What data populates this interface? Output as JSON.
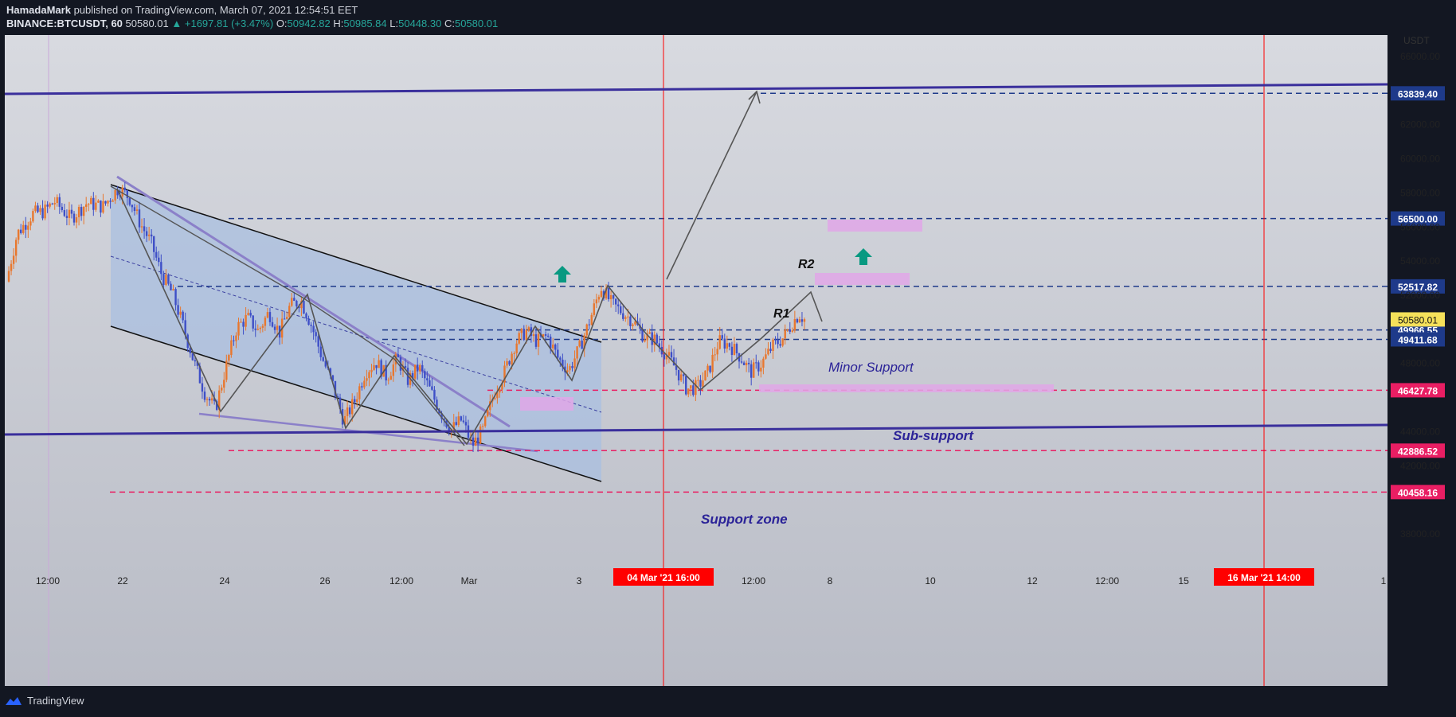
{
  "header": {
    "author": "HamadaMark",
    "published": "published on TradingView.com, March 07, 2021 12:54:51 EET",
    "symbol": "BINANCE:BTCUSDT, 60",
    "last": "50580.01",
    "change": "▲ +1697.81 (+3.47%)",
    "o_label": "O:",
    "o_val": "50942.82",
    "h_label": "H:",
    "h_val": "50985.84",
    "l_label": "L:",
    "l_val": "50448.30",
    "c_label": "C:",
    "c_val": "50580.01"
  },
  "footer": {
    "brand": "TradingView"
  },
  "colors": {
    "background": "#d6d8de",
    "channel_fill": "#a9bfe0",
    "trendline_blue": "#3a2f9c",
    "dashed_blue": "#1e3a8a",
    "dashed_red": "#e91e63",
    "vertical_red": "#ff0000",
    "pink_box": "#e1a7e8",
    "arrow_teal": "#089981",
    "candle_up": "#e8772e",
    "candle_down": "#3e4fc7"
  },
  "chart_data": {
    "type": "candlestick",
    "y_axis_unit": "USDT",
    "ylim": [
      36000,
      67500
    ],
    "y_ticks": [
      38000,
      40000,
      42000,
      44000,
      46000,
      48000,
      50000,
      52000,
      54000,
      56000,
      58000,
      60000,
      62000,
      64000,
      66000
    ],
    "x_ticks": [
      "12:00",
      "22",
      "24",
      "26",
      "12:00",
      "Mar",
      "3",
      "12:00",
      "8",
      "10",
      "12",
      "12:00",
      "15",
      "1"
    ],
    "x_markers": [
      {
        "label": "04 Mar '21   16:00"
      },
      {
        "label": "16 Mar '21   14:00"
      }
    ],
    "price_levels": [
      {
        "value": 63839.4,
        "label": "63839.40",
        "style": "dashed-blue"
      },
      {
        "value": 56500.0,
        "label": "56500.00",
        "style": "dashed-blue"
      },
      {
        "value": 52517.82,
        "label": "52517.82",
        "style": "dashed-blue"
      },
      {
        "value": 49966.55,
        "label": "49966.55",
        "style": "dashed-blue"
      },
      {
        "value": 49411.68,
        "label": "49411.68",
        "style": "dashed-blue"
      },
      {
        "value": 46427.78,
        "label": "46427.78",
        "style": "dashed-red"
      },
      {
        "value": 42886.52,
        "label": "42886.52",
        "style": "dashed-red"
      },
      {
        "value": 40458.16,
        "label": "40458.16",
        "style": "dashed-red"
      }
    ],
    "current_price": {
      "value": 50580.01,
      "label": "50580.01"
    },
    "annotations": [
      {
        "text": "R2"
      },
      {
        "text": "R1"
      },
      {
        "text": "Minor Support"
      },
      {
        "text": "Sub-support"
      },
      {
        "text": "Support zone"
      }
    ],
    "price_path": [
      [
        0,
        52800
      ],
      [
        2,
        55600
      ],
      [
        5,
        56800
      ],
      [
        7,
        56900
      ],
      [
        9,
        57500
      ],
      [
        12,
        56500
      ],
      [
        15,
        57400
      ],
      [
        18,
        57200
      ],
      [
        21,
        58300
      ],
      [
        23,
        57700
      ],
      [
        25,
        56200
      ],
      [
        27,
        55100
      ],
      [
        29,
        53200
      ],
      [
        31,
        52100
      ],
      [
        33,
        50200
      ],
      [
        35,
        48100
      ],
      [
        37,
        46300
      ],
      [
        39,
        45300
      ],
      [
        41,
        47800
      ],
      [
        43,
        50100
      ],
      [
        45,
        50700
      ],
      [
        47,
        49900
      ],
      [
        49,
        51000
      ],
      [
        51,
        49800
      ],
      [
        53,
        51400
      ],
      [
        55,
        51700
      ],
      [
        57,
        50200
      ],
      [
        59,
        48300
      ],
      [
        61,
        46700
      ],
      [
        63,
        44600
      ],
      [
        65,
        45800
      ],
      [
        67,
        47500
      ],
      [
        69,
        48100
      ],
      [
        71,
        47200
      ],
      [
        73,
        48300
      ],
      [
        75,
        47000
      ],
      [
        77,
        47800
      ],
      [
        79,
        46500
      ],
      [
        81,
        45200
      ],
      [
        83,
        44100
      ],
      [
        85,
        44700
      ],
      [
        87,
        43200
      ],
      [
        89,
        44100
      ],
      [
        91,
        46200
      ],
      [
        93,
        47500
      ],
      [
        95,
        49200
      ],
      [
        97,
        49900
      ],
      [
        99,
        49300
      ],
      [
        101,
        49600
      ],
      [
        103,
        48300
      ],
      [
        105,
        47600
      ],
      [
        107,
        48900
      ],
      [
        109,
        50600
      ],
      [
        111,
        52500
      ],
      [
        113,
        51500
      ],
      [
        115,
        51000
      ],
      [
        117,
        50500
      ],
      [
        119,
        49600
      ],
      [
        121,
        49400
      ],
      [
        123,
        48600
      ],
      [
        125,
        47700
      ],
      [
        127,
        46500
      ],
      [
        129,
        46600
      ],
      [
        131,
        47500
      ],
      [
        133,
        49300
      ],
      [
        135,
        49100
      ],
      [
        137,
        48400
      ],
      [
        139,
        47500
      ],
      [
        141,
        48000
      ],
      [
        143,
        49000
      ],
      [
        145,
        49500
      ],
      [
        147,
        50500
      ],
      [
        148,
        50900
      ],
      [
        149,
        50580.01
      ]
    ],
    "path_x_range": [
      0,
      149
    ]
  }
}
